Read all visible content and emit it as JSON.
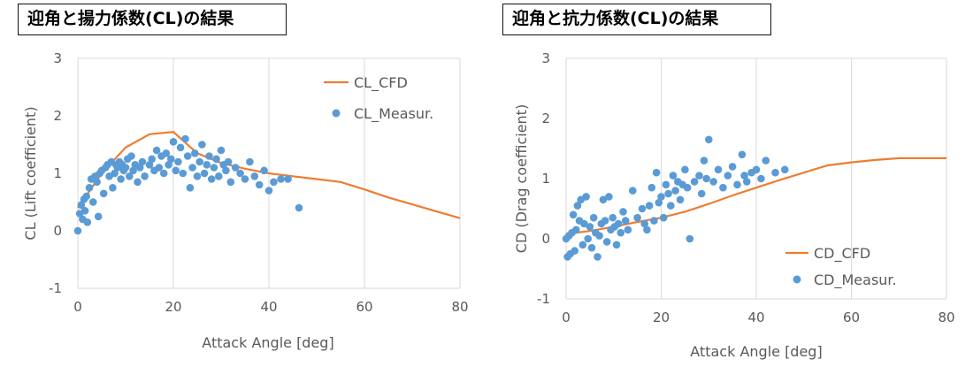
{
  "colors": {
    "cfd": "#ED7D31",
    "measured": "#5B9BD5",
    "grid": "#D9D9D9",
    "text": "#595959"
  },
  "chart_data": [
    {
      "type": "scatter",
      "title": "迎角と揚力係数(CL)の結果",
      "xlabel": "Attack Angle [deg]",
      "ylabel": "CL (Lift coefficient)",
      "xlim": [
        0,
        80
      ],
      "ylim": [
        -1,
        3
      ],
      "xticks": [
        "0",
        "20",
        "40",
        "60",
        "80"
      ],
      "yticks": [
        "-1",
        "0",
        "1",
        "2",
        "3"
      ],
      "grid": "vertical",
      "legend_position": "top-right",
      "series": [
        {
          "name": "CL_CFD",
          "kind": "line",
          "x": [
            0,
            5,
            10,
            15,
            20,
            25,
            30,
            35,
            40,
            45,
            50,
            55,
            60,
            65,
            70,
            75,
            80
          ],
          "y": [
            0.4,
            1.0,
            1.45,
            1.68,
            1.72,
            1.35,
            1.18,
            1.08,
            1.0,
            0.95,
            0.9,
            0.85,
            0.72,
            0.58,
            0.46,
            0.34,
            0.22
          ]
        },
        {
          "name": "CL_Measur.",
          "kind": "scatter",
          "x": [
            0,
            0.4,
            0.7,
            1.0,
            1.3,
            1.5,
            1.8,
            2.0,
            2.4,
            2.8,
            3.2,
            3.6,
            4.0,
            4.3,
            4.6,
            5.0,
            5.4,
            5.8,
            6.2,
            6.6,
            7.0,
            7.3,
            7.7,
            8.0,
            8.3,
            8.7,
            9.0,
            9.3,
            9.6,
            10.0,
            10.4,
            10.8,
            11.2,
            11.6,
            12.0,
            12.5,
            13.0,
            13.5,
            14.0,
            15.0,
            15.5,
            16.0,
            16.5,
            17.0,
            17.5,
            18.0,
            18.5,
            19.0,
            19.5,
            20.0,
            20.5,
            21.0,
            21.5,
            22.0,
            22.5,
            23.0,
            23.5,
            24.0,
            24.5,
            25.0,
            25.5,
            26.0,
            26.5,
            27.0,
            27.5,
            28.0,
            28.5,
            29.0,
            29.5,
            30.0,
            30.5,
            31.0,
            31.5,
            32.0,
            33.0,
            34.0,
            35.0,
            36.0,
            37.0,
            38.0,
            39.0,
            40.0,
            41.0,
            42.5,
            44.0,
            46.3
          ],
          "y": [
            0.0,
            0.3,
            0.45,
            0.2,
            0.55,
            0.35,
            0.6,
            0.15,
            0.75,
            0.9,
            0.5,
            0.95,
            0.85,
            0.25,
            1.0,
            1.05,
            0.65,
            1.1,
            1.15,
            0.95,
            1.2,
            0.75,
            1.0,
            1.15,
            1.1,
            1.2,
            0.9,
            1.15,
            1.05,
            1.1,
            1.25,
            0.95,
            1.3,
            1.05,
            1.15,
            0.85,
            1.1,
            1.2,
            0.95,
            1.15,
            1.25,
            1.05,
            1.4,
            1.1,
            1.3,
            1.0,
            1.35,
            1.15,
            1.25,
            1.55,
            1.05,
            1.2,
            1.45,
            1.0,
            1.6,
            1.3,
            0.75,
            1.1,
            1.35,
            0.95,
            1.2,
            1.5,
            1.0,
            1.15,
            1.3,
            0.9,
            1.1,
            1.25,
            0.95,
            1.4,
            1.15,
            1.05,
            1.2,
            0.85,
            1.1,
            1.0,
            0.9,
            1.2,
            0.95,
            0.8,
            1.05,
            0.7,
            0.85,
            0.9,
            0.9,
            0.4
          ]
        }
      ]
    },
    {
      "type": "scatter",
      "title": "迎角と抗力係数(CL)の結果",
      "xlabel": "Attack Angle [deg]",
      "ylabel": "CD (Drag coefficient)",
      "xlim": [
        0,
        80
      ],
      "ylim": [
        -1,
        3
      ],
      "xticks": [
        "0",
        "20",
        "40",
        "60",
        "80"
      ],
      "yticks": [
        "-1",
        "0",
        "1",
        "2",
        "3"
      ],
      "grid": "vertical",
      "legend_position": "bottom-right",
      "series": [
        {
          "name": "CD_CFD",
          "kind": "line",
          "x": [
            0,
            5,
            10,
            15,
            20,
            25,
            30,
            35,
            40,
            45,
            50,
            55,
            60,
            65,
            70,
            75,
            80
          ],
          "y": [
            0.08,
            0.13,
            0.2,
            0.28,
            0.35,
            0.45,
            0.58,
            0.72,
            0.85,
            0.98,
            1.1,
            1.22,
            1.27,
            1.31,
            1.34,
            1.34,
            1.34
          ]
        },
        {
          "name": "CD_Measur.",
          "kind": "scatter",
          "x": [
            0,
            0.3,
            0.6,
            0.9,
            1.2,
            1.5,
            1.8,
            2.1,
            2.4,
            2.8,
            3.1,
            3.5,
            3.8,
            4.2,
            4.6,
            5.0,
            5.4,
            5.8,
            6.2,
            6.6,
            7.0,
            7.4,
            7.8,
            8.2,
            8.6,
            9.0,
            9.4,
            9.8,
            10.2,
            10.6,
            11.0,
            11.5,
            12.0,
            12.5,
            13.0,
            14.0,
            15.0,
            16.0,
            16.5,
            17.0,
            17.5,
            18.0,
            18.5,
            19.0,
            19.5,
            20.0,
            20.5,
            21.0,
            21.5,
            22.0,
            22.5,
            23.0,
            23.5,
            24.0,
            24.5,
            25.0,
            25.5,
            26.0,
            27.0,
            28.0,
            28.5,
            29.0,
            29.5,
            30.0,
            31.0,
            32.0,
            33.0,
            34.0,
            35.0,
            36.0,
            37.0,
            37.5,
            38.0,
            39.0,
            40.0,
            41.0,
            42.0,
            44.0,
            46.0
          ],
          "y": [
            0.0,
            -0.3,
            0.05,
            -0.25,
            0.1,
            0.4,
            -0.2,
            0.15,
            0.55,
            0.3,
            0.65,
            -0.1,
            0.25,
            0.7,
            0.0,
            0.2,
            -0.15,
            0.35,
            0.1,
            -0.3,
            0.05,
            0.25,
            0.65,
            0.3,
            -0.05,
            0.7,
            0.15,
            0.35,
            0.2,
            -0.1,
            0.25,
            0.1,
            0.45,
            0.3,
            0.15,
            0.8,
            0.35,
            0.5,
            0.25,
            0.15,
            0.55,
            0.85,
            0.3,
            1.1,
            0.6,
            0.7,
            0.35,
            0.9,
            0.75,
            0.55,
            1.05,
            0.8,
            0.95,
            0.65,
            0.9,
            1.15,
            0.85,
            0.0,
            0.95,
            1.05,
            0.75,
            1.3,
            1.0,
            1.65,
            0.95,
            1.15,
            0.85,
            1.05,
            1.2,
            0.9,
            1.4,
            1.05,
            0.95,
            1.1,
            1.15,
            1.0,
            1.3,
            1.1,
            1.15
          ]
        }
      ]
    }
  ]
}
